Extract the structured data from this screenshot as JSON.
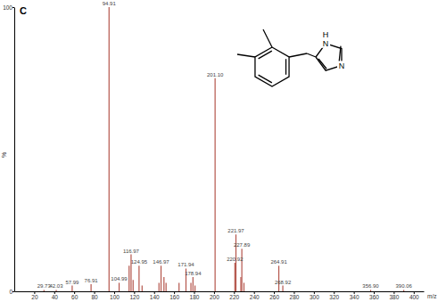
{
  "chart_data": {
    "type": "bar",
    "title": "C",
    "x_label": "m/z",
    "y_label": "%",
    "x": [
      29.73,
      42.03,
      57.99,
      76.91,
      94.91,
      104.99,
      115.0,
      116.97,
      119.0,
      124.95,
      128.0,
      144.9,
      146.97,
      149.9,
      152.0,
      165.0,
      171.94,
      176.9,
      178.94,
      181.0,
      201.1,
      220.92,
      221.97,
      226.9,
      227.89,
      230.0,
      264.91,
      268.92,
      356.9,
      390.06
    ],
    "values": [
      0.5,
      0.5,
      2,
      2.5,
      100,
      3,
      9,
      13,
      4,
      9,
      2,
      3,
      9,
      5,
      3,
      3,
      8,
      3,
      5,
      2,
      75,
      10,
      20,
      5,
      15,
      3,
      9,
      2,
      0.5,
      0.5
    ],
    "x_labels": [
      "29.73",
      "42.03",
      "57.99",
      "76.91",
      "94.91",
      "104.99",
      null,
      "116.97",
      null,
      "124.95",
      null,
      null,
      "146.97",
      null,
      null,
      null,
      "171.94",
      null,
      "178.94",
      null,
      "201.10",
      "220.92",
      "221.97",
      null,
      "227.89",
      null,
      "264.91",
      "268.92",
      "356.90",
      "390.06"
    ],
    "data_labels": true,
    "color": "#b4554b",
    "xlim": [
      0,
      410
    ],
    "xticks": [
      20,
      40,
      60,
      80,
      100,
      120,
      140,
      160,
      180,
      200,
      220,
      240,
      260,
      280,
      300,
      320,
      340,
      360,
      380,
      400
    ],
    "ylim": [
      0,
      100
    ],
    "yticks": [
      0,
      100
    ],
    "annotations": [
      "H",
      "N",
      "N"
    ]
  }
}
